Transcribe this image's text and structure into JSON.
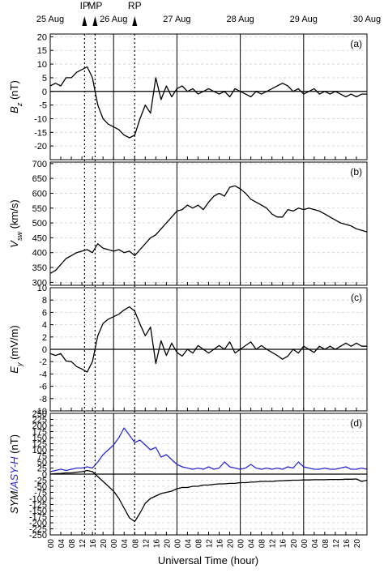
{
  "chart_data": {
    "type": "line",
    "xlabel": "Universal Time (hour)",
    "xlim": [
      0,
      120
    ],
    "x": [
      0,
      2,
      4,
      6,
      8,
      10,
      12,
      14,
      16,
      18,
      20,
      22,
      24,
      26,
      28,
      30,
      32,
      34,
      36,
      38,
      40,
      42,
      44,
      46,
      48,
      50,
      52,
      54,
      56,
      58,
      60,
      62,
      64,
      66,
      68,
      70,
      72,
      74,
      76,
      78,
      80,
      82,
      84,
      86,
      88,
      90,
      92,
      94,
      96,
      98,
      100,
      102,
      104,
      106,
      108,
      110,
      112,
      114,
      116,
      118,
      120
    ],
    "xticks": [
      {
        "value": 0,
        "label": "00"
      },
      {
        "value": 4,
        "label": "04"
      },
      {
        "value": 8,
        "label": "08"
      },
      {
        "value": 12,
        "label": "12"
      },
      {
        "value": 16,
        "label": "16"
      },
      {
        "value": 20,
        "label": "20"
      },
      {
        "value": 24,
        "label": "00"
      },
      {
        "value": 28,
        "label": "04"
      },
      {
        "value": 32,
        "label": "08"
      },
      {
        "value": 36,
        "label": "12"
      },
      {
        "value": 40,
        "label": "16"
      },
      {
        "value": 44,
        "label": "20"
      },
      {
        "value": 48,
        "label": "00"
      },
      {
        "value": 52,
        "label": "04"
      },
      {
        "value": 56,
        "label": "08"
      },
      {
        "value": 60,
        "label": "12"
      },
      {
        "value": 64,
        "label": "16"
      },
      {
        "value": 68,
        "label": "20"
      },
      {
        "value": 72,
        "label": "00"
      },
      {
        "value": 76,
        "label": "04"
      },
      {
        "value": 80,
        "label": "08"
      },
      {
        "value": 84,
        "label": "12"
      },
      {
        "value": 88,
        "label": "16"
      },
      {
        "value": 92,
        "label": "20"
      },
      {
        "value": 96,
        "label": "00"
      },
      {
        "value": 100,
        "label": "04"
      },
      {
        "value": 104,
        "label": "08"
      },
      {
        "value": 108,
        "label": "12"
      },
      {
        "value": 112,
        "label": "16"
      },
      {
        "value": 116,
        "label": "20"
      }
    ],
    "date_labels": [
      {
        "value": 0,
        "label": "25 Aug"
      },
      {
        "value": 24,
        "label": "26 Aug"
      },
      {
        "value": 48,
        "label": "27 Aug"
      },
      {
        "value": 72,
        "label": "28 Aug"
      },
      {
        "value": 96,
        "label": "29 Aug"
      },
      {
        "value": 120,
        "label": "30 Aug"
      }
    ],
    "markers": [
      {
        "value": 13,
        "label": "IP"
      },
      {
        "value": 17,
        "label": "MP"
      },
      {
        "value": 32,
        "label": "RP"
      }
    ],
    "panels": [
      {
        "panel_label": "(a)",
        "ylabel_parts": [
          {
            "text": "B"
          },
          {
            "text": "z",
            "sub": true
          },
          {
            "text": " (nT)"
          }
        ],
        "ylim": [
          -25,
          21
        ],
        "yticks": [
          -20,
          -15,
          -10,
          -5,
          0,
          5,
          10,
          15,
          20
        ],
        "zero_line": true,
        "series": [
          {
            "color": "#000000",
            "values": [
              2,
              3,
              2,
              5,
              5,
              7,
              8,
              9,
              5,
              -5,
              -10,
              -12,
              -13,
              -14,
              -16,
              -17,
              -16,
              -10,
              -5,
              -8,
              5,
              -3,
              2,
              -2,
              1,
              2,
              0,
              1,
              -1,
              0,
              1,
              0,
              -1,
              0,
              -2,
              1,
              0,
              -1,
              -2,
              0,
              -1,
              0,
              1,
              2,
              3,
              2,
              0,
              1,
              -1,
              0,
              1,
              -1,
              0,
              -1,
              0,
              -1,
              -2,
              -1,
              -2,
              -1,
              -1
            ]
          }
        ]
      },
      {
        "panel_label": "(b)",
        "ylabel_parts": [
          {
            "text": "V"
          },
          {
            "text": "sw",
            "sub": true
          },
          {
            "text": " (km/s)"
          }
        ],
        "ylim": [
          290,
          705
        ],
        "yticks": [
          300,
          350,
          400,
          450,
          500,
          550,
          600,
          650,
          700
        ],
        "zero_line": false,
        "series": [
          {
            "color": "#000000",
            "values": [
              330,
              340,
              360,
              380,
              390,
              400,
              405,
              410,
              400,
              430,
              415,
              410,
              405,
              410,
              400,
              405,
              390,
              410,
              430,
              450,
              460,
              480,
              500,
              520,
              540,
              545,
              560,
              550,
              560,
              545,
              570,
              590,
              600,
              590,
              620,
              625,
              615,
              600,
              580,
              570,
              560,
              550,
              530,
              520,
              520,
              545,
              540,
              550,
              545,
              550,
              545,
              540,
              530,
              520,
              510,
              500,
              495,
              490,
              480,
              475,
              470
            ]
          }
        ]
      },
      {
        "panel_label": "(c)",
        "ylabel_parts": [
          {
            "text": "E"
          },
          {
            "text": "y",
            "sub": true
          },
          {
            "text": " (mV/m)"
          }
        ],
        "ylim": [
          -10,
          10
        ],
        "yticks": [
          -10,
          -8,
          -6,
          -4,
          -2,
          0,
          2,
          4,
          6,
          8,
          10
        ],
        "zero_line": true,
        "series": [
          {
            "color": "#000000",
            "values": [
              -0.7,
              -1,
              -0.7,
              -1.9,
              -2,
              -2.8,
              -3.2,
              -3.7,
              -2,
              2.2,
              4.2,
              4.9,
              5.3,
              5.7,
              6.4,
              6.9,
              6.2,
              4.1,
              2.2,
              3.6,
              -2.3,
              1.4,
              -1,
              1,
              -0.5,
              -1.1,
              0,
              -0.6,
              0.6,
              0,
              -0.6,
              0,
              0.6,
              0,
              1.2,
              -0.6,
              0,
              0.6,
              1.2,
              0,
              0.6,
              0,
              -0.5,
              -1,
              -1.6,
              -1.1,
              0,
              -0.6,
              0.5,
              0,
              -0.5,
              0.5,
              0,
              0.5,
              0,
              0.5,
              1,
              0.5,
              1,
              0.5,
              0.5
            ]
          }
        ]
      },
      {
        "panel_label": "(d)",
        "ylabel_parts": [
          {
            "text": "SYM",
            "color": "#000000"
          },
          {
            "text": "/ASY-H",
            "color": "#2a2ad0"
          },
          {
            "text": " (nT)",
            "color": "#000000"
          }
        ],
        "ylim": [
          -250,
          250
        ],
        "yticks": [
          -250,
          -225,
          -200,
          -175,
          -150,
          -125,
          -100,
          -75,
          -50,
          -25,
          0,
          25,
          50,
          75,
          100,
          125,
          150,
          175,
          200,
          225,
          250
        ],
        "zero_line": true,
        "series": [
          {
            "color": "#2a2ad0",
            "values": [
              10,
              15,
              20,
              15,
              20,
              25,
              25,
              30,
              25,
              50,
              80,
              100,
              120,
              150,
              190,
              160,
              130,
              140,
              120,
              100,
              110,
              70,
              80,
              60,
              40,
              30,
              25,
              20,
              25,
              20,
              30,
              20,
              25,
              50,
              30,
              25,
              20,
              25,
              40,
              25,
              20,
              25,
              20,
              25,
              20,
              30,
              25,
              50,
              30,
              25,
              20,
              20,
              25,
              20,
              20,
              25,
              30,
              20,
              20,
              25,
              20
            ]
          },
          {
            "color": "#000000",
            "values": [
              0,
              2,
              3,
              5,
              5,
              8,
              10,
              15,
              10,
              -10,
              -30,
              -50,
              -70,
              -100,
              -140,
              -180,
              -195,
              -160,
              -120,
              -100,
              -90,
              -80,
              -75,
              -70,
              -60,
              -55,
              -55,
              -50,
              -50,
              -45,
              -45,
              -42,
              -40,
              -40,
              -38,
              -38,
              -35,
              -35,
              -33,
              -32,
              -30,
              -30,
              -30,
              -28,
              -27,
              -26,
              -25,
              -25,
              -24,
              -24,
              -23,
              -23,
              -23,
              -22,
              -22,
              -22,
              -21,
              -21,
              -20,
              -30,
              -25
            ]
          }
        ]
      }
    ]
  }
}
